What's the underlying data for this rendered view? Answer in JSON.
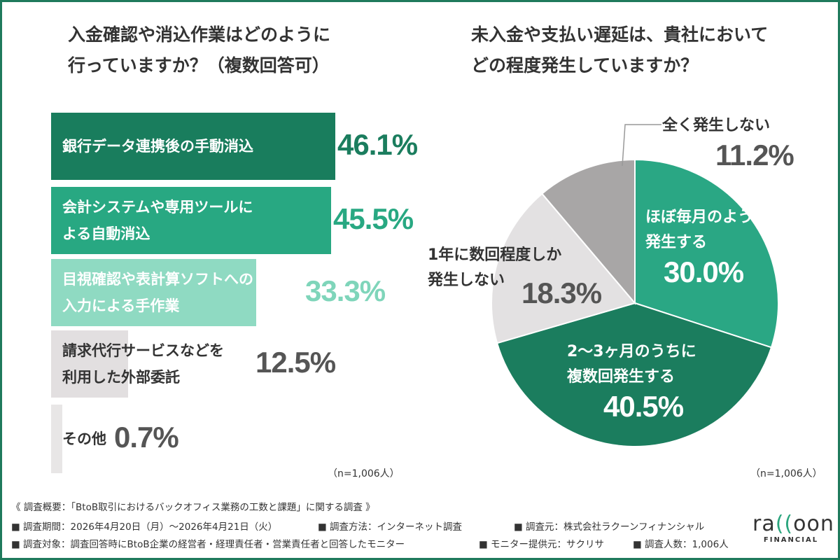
{
  "left_title": [
    "入金確認や消込作業はどのように",
    "行っていますか？（複数回答可）"
  ],
  "right_title": [
    "未入金や支払い遅延は、貴社において",
    "どの程度発生していますか？"
  ],
  "n_note_left": "（n=1,006人）",
  "n_note_right": "（n=1,006人）",
  "colors": {
    "frame": "#1f7a5c",
    "bar1": "#197d5d",
    "bar2": "#28a882",
    "bar3": "#8fdac2",
    "bar4": "#e2dfe0",
    "bar5": "#e8e6e6",
    "pie_monthly": "#2aa784",
    "pie_2_3": "#1b7d5e",
    "pie_yearly": "#e3e1e2",
    "pie_never": "#a8a6a6"
  },
  "chart_data": [
    {
      "type": "bar",
      "orientation": "horizontal",
      "title": "入金確認や消込作業はどのように行っていますか？（複数回答可）",
      "categories": [
        "銀行データ連携後の手動消込",
        "会計システムや専用ツールによる自動消込",
        "目視確認や表計算ソフトへの入力による手作業",
        "請求代行サービスなどを利用した外部委託",
        "その他"
      ],
      "values": [
        46.1,
        45.5,
        33.3,
        12.5,
        0.7
      ],
      "value_labels": [
        "46.1%",
        "45.5%",
        "33.3%",
        "12.5%",
        "0.7%"
      ],
      "xlim": [
        0,
        100
      ],
      "unit": "%"
    },
    {
      "type": "pie",
      "title": "未入金や支払い遅延は、貴社においてどの程度発生していますか？",
      "slices": [
        {
          "label": "ほぼ毎月のように発生する",
          "value": 30.0,
          "value_label": "30.0%"
        },
        {
          "label": "2〜3ヶ月のうちに複数回発生する",
          "value": 40.5,
          "value_label": "40.5%"
        },
        {
          "label": "1年に数回程度しか発生しない",
          "value": 18.3,
          "value_label": "18.3%"
        },
        {
          "label": "全く発生しない",
          "value": 11.2,
          "value_label": "11.2%"
        }
      ],
      "start": "top",
      "direction": "clockwise"
    }
  ],
  "bar_labels": [
    [
      "銀行データ連携後の手動消込"
    ],
    [
      "会計システムや専用ツールに",
      "よる自動消込"
    ],
    [
      "目視確認や表計算ソフトへの",
      "入力による手作業"
    ],
    [
      "請求代行サービスなどを",
      "利用した外部委託"
    ],
    [
      "その他"
    ]
  ],
  "pie_labels": [
    [
      "ほぼ毎月のように",
      "発生する"
    ],
    [
      "2〜3ヶ月のうちに",
      "複数回発生する"
    ],
    [
      "1年に数回程度しか",
      "発生しない"
    ],
    [
      "全く発生しない"
    ]
  ],
  "footer": {
    "summary": "《 調査概要：「BtoB取引におけるバックオフィス業務の工数と課題」に関する調査 》",
    "period": "■ 調査期間：2026年4月20日（月）〜2026年4月21日（火）",
    "method": "■ 調査方法：インターネット調査",
    "source": "■ 調査元：株式会社ラクーンフィナンシャル",
    "target": "■ 調査対象：調査回答時にBtoB企業の経営者・経理責任者・営業責任者と回答したモニター",
    "provider": "■ モニター提供元：サクリサ",
    "count": "■ 調査人数：1,006人"
  },
  "logo": {
    "word_a": "ra",
    "word_cc": "((",
    "word_b": "oon",
    "sub": "FINANCIAL"
  }
}
